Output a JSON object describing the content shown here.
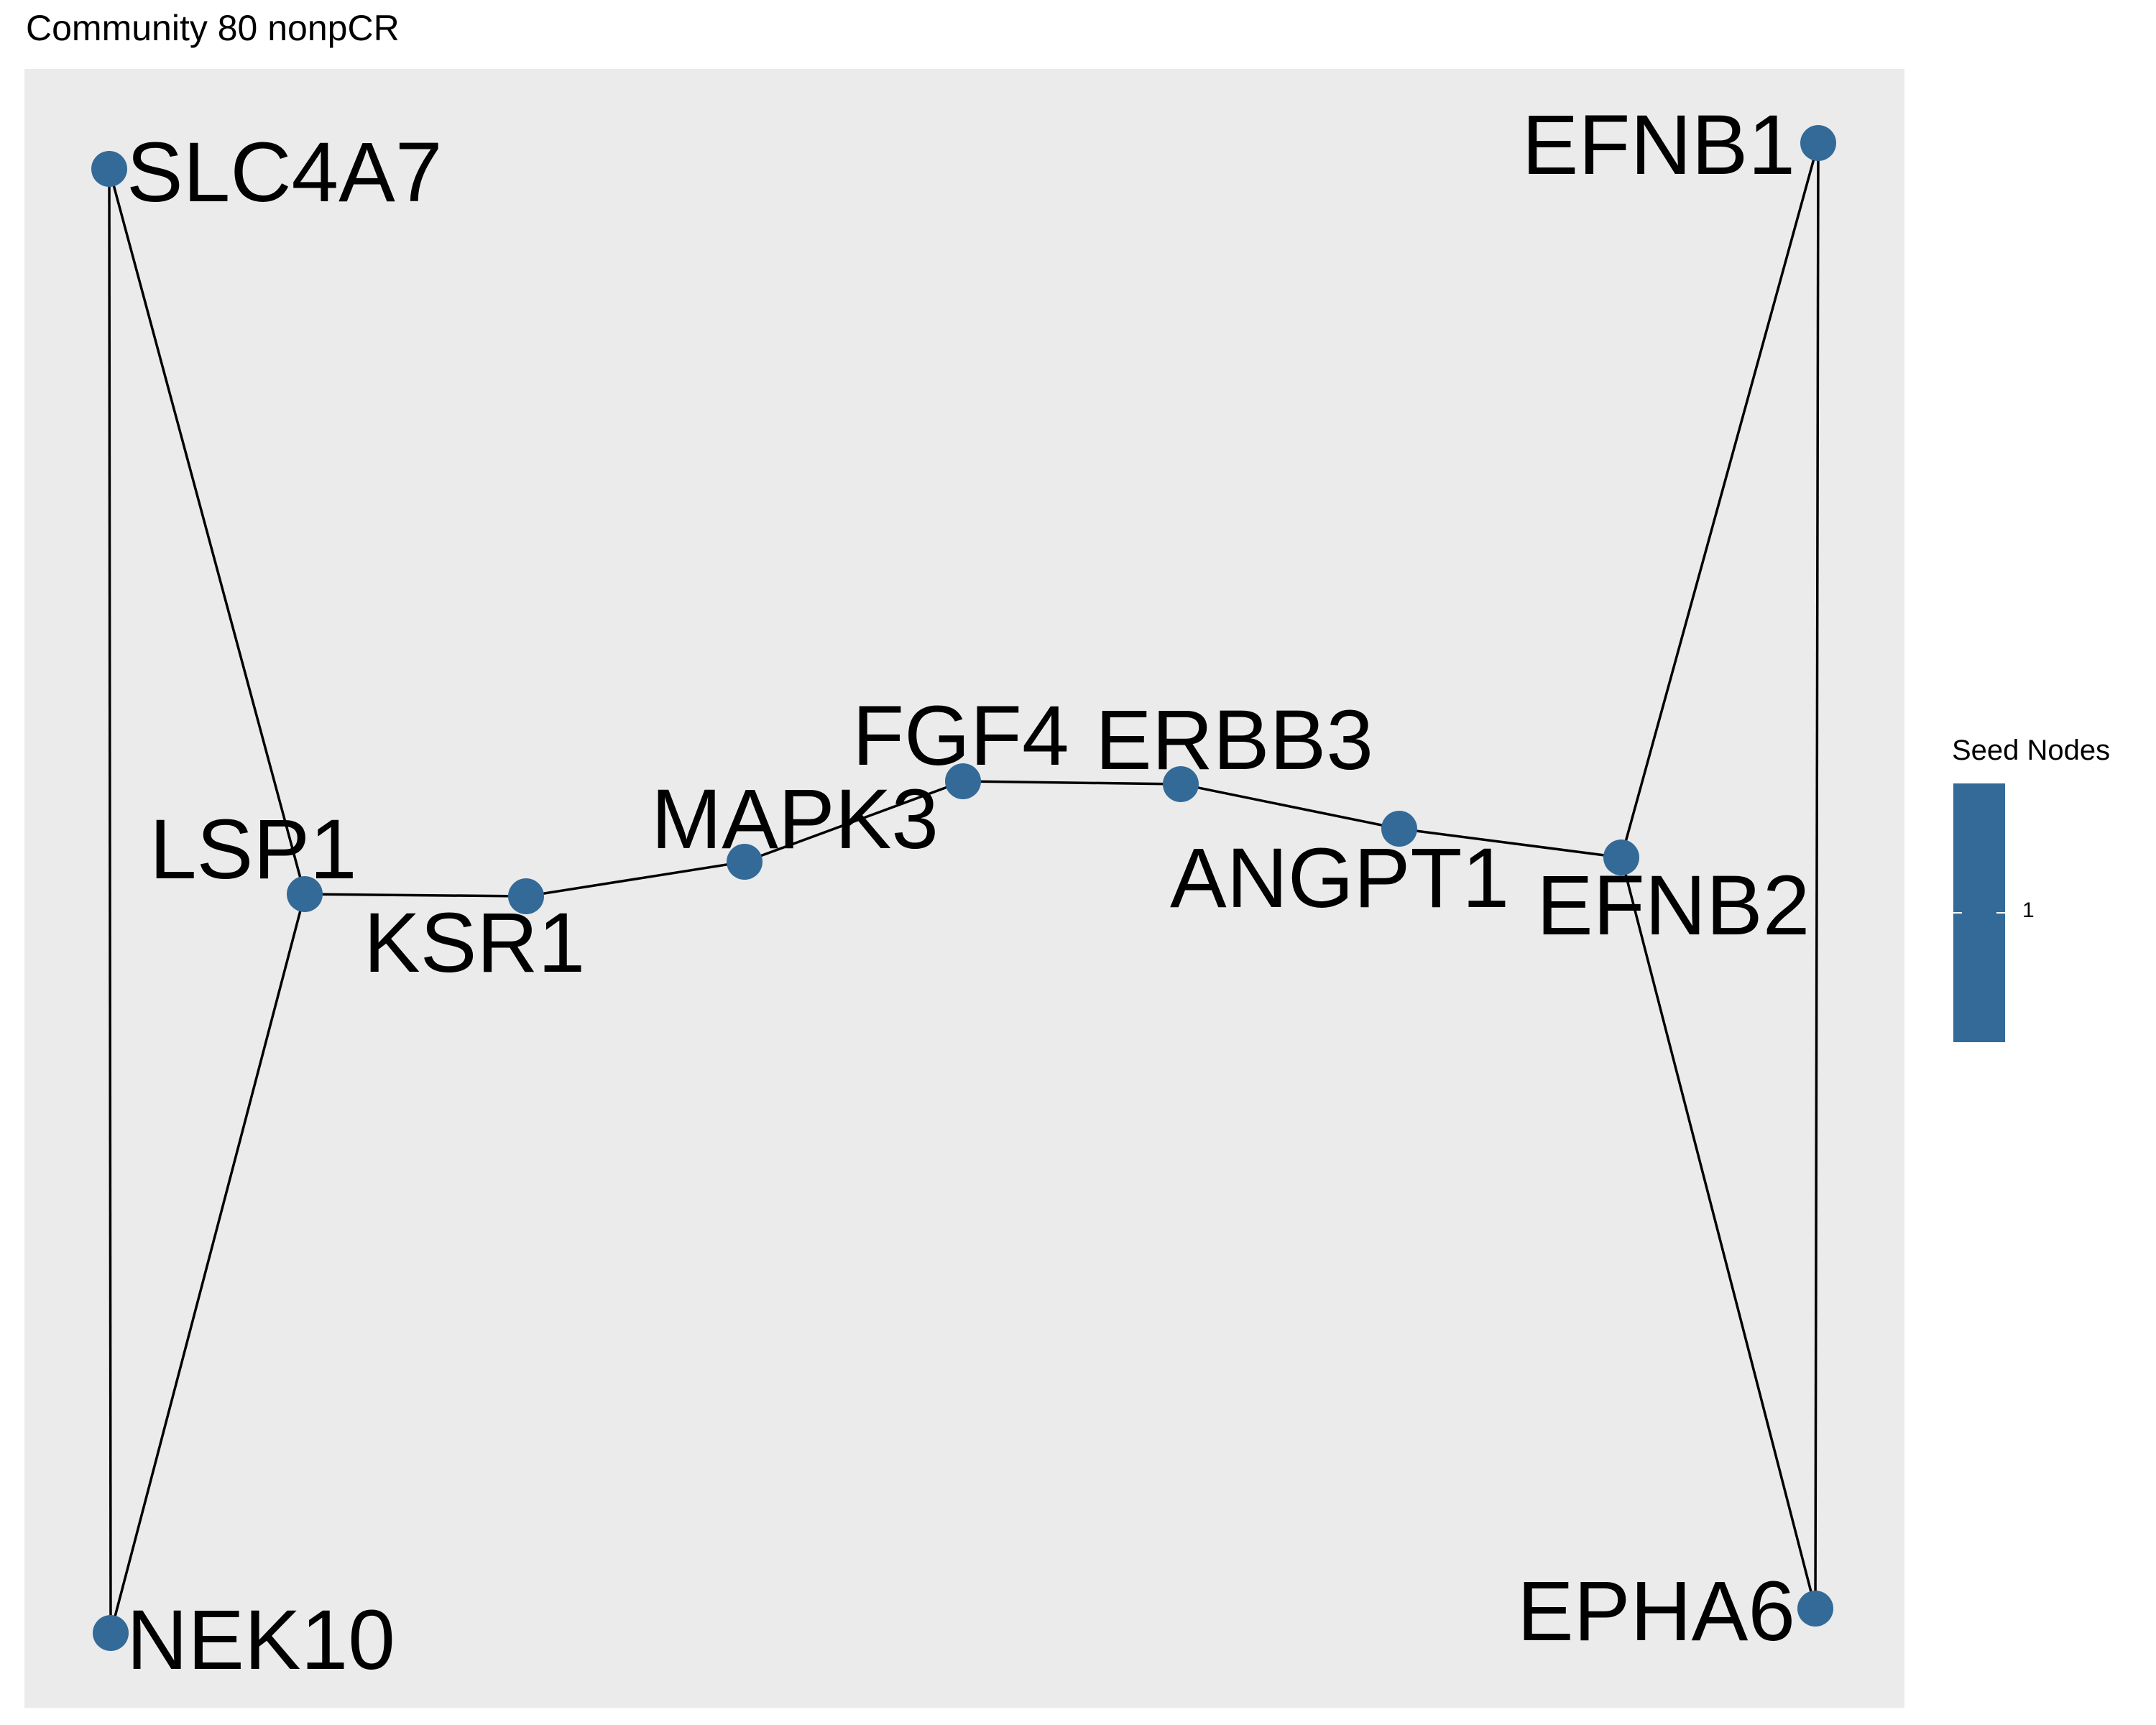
{
  "title": "Community 80 nonpCR",
  "colors": {
    "panel": "#ebebeb",
    "node": "#336a98",
    "edge": "#000000"
  },
  "legend": {
    "title": "Seed Nodes",
    "value_label": "1"
  },
  "nodes": [
    {
      "id": "SLC4A7",
      "label": "SLC4A7",
      "seed": 1
    },
    {
      "id": "NEK10",
      "label": "NEK10",
      "seed": 1
    },
    {
      "id": "LSP1",
      "label": "LSP1",
      "seed": 1
    },
    {
      "id": "KSR1",
      "label": "KSR1",
      "seed": 1
    },
    {
      "id": "MAPK3",
      "label": "MAPK3",
      "seed": 1
    },
    {
      "id": "FGF4",
      "label": "FGF4",
      "seed": 1
    },
    {
      "id": "ERBB3",
      "label": "ERBB3",
      "seed": 1
    },
    {
      "id": "ANGPT1",
      "label": "ANGPT1",
      "seed": 1
    },
    {
      "id": "EFNB2",
      "label": "EFNB2",
      "seed": 1
    },
    {
      "id": "EFNB1",
      "label": "EFNB1",
      "seed": 1
    },
    {
      "id": "EPHA6",
      "label": "EPHA6",
      "seed": 1
    }
  ],
  "edges": [
    [
      "SLC4A7",
      "NEK10"
    ],
    [
      "SLC4A7",
      "LSP1"
    ],
    [
      "LSP1",
      "NEK10"
    ],
    [
      "LSP1",
      "KSR1"
    ],
    [
      "KSR1",
      "MAPK3"
    ],
    [
      "MAPK3",
      "FGF4"
    ],
    [
      "FGF4",
      "ERBB3"
    ],
    [
      "ERBB3",
      "ANGPT1"
    ],
    [
      "ANGPT1",
      "EFNB2"
    ],
    [
      "EFNB2",
      "EFNB1"
    ],
    [
      "EFNB2",
      "EPHA6"
    ],
    [
      "EFNB1",
      "EPHA6"
    ]
  ]
}
